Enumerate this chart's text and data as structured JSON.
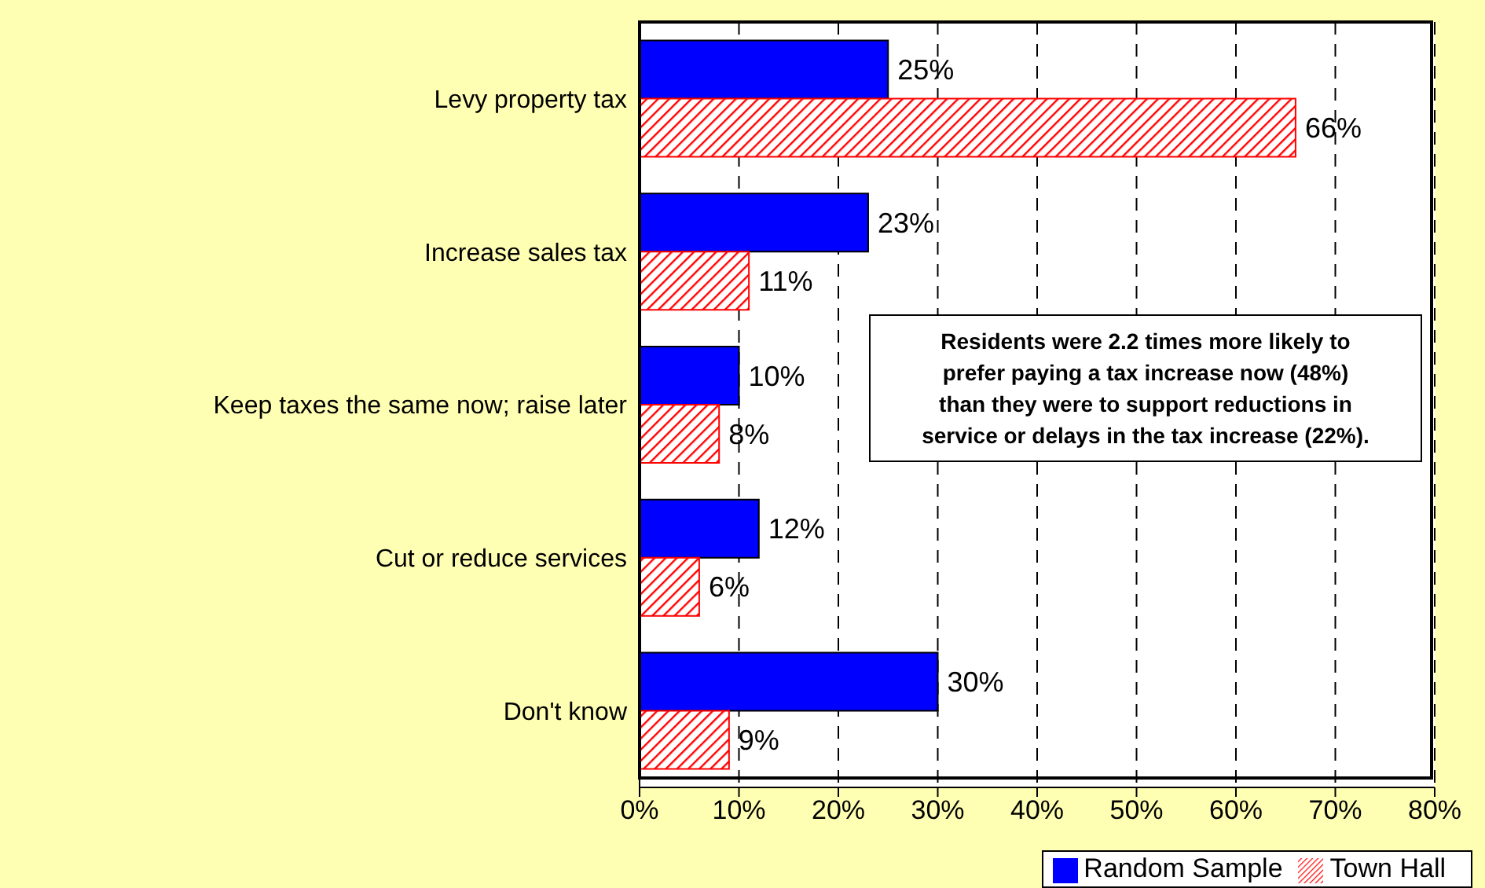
{
  "chart_data": {
    "type": "bar",
    "orientation": "horizontal",
    "categories": [
      "Levy property tax",
      "Increase sales tax",
      "Keep taxes the same now; raise later",
      "Cut or reduce services",
      "Don't know"
    ],
    "series": [
      {
        "name": "Random Sample",
        "color": "#0000ff",
        "values": [
          25,
          23,
          10,
          12,
          30
        ],
        "value_labels": [
          "25%",
          "23%",
          "10%",
          "12%",
          "30%"
        ]
      },
      {
        "name": "Town Hall",
        "color": "#ff0000",
        "values": [
          66,
          11,
          8,
          6,
          9
        ],
        "value_labels": [
          "66%",
          "11%",
          "8%",
          "6%",
          "9%"
        ]
      }
    ],
    "xlim": [
      0,
      80
    ],
    "xticks": [
      {
        "value": 0,
        "label": "0%"
      },
      {
        "value": 10,
        "label": "10%"
      },
      {
        "value": 20,
        "label": "20%"
      },
      {
        "value": 30,
        "label": "30%"
      },
      {
        "value": 40,
        "label": "40%"
      },
      {
        "value": 50,
        "label": "50%"
      },
      {
        "value": 60,
        "label": "60%"
      },
      {
        "value": 70,
        "label": "70%"
      },
      {
        "value": 80,
        "label": "80%"
      }
    ],
    "grid": "x",
    "legend": "bottom right",
    "annotations": [
      "Residents were 2.2 times more likely to prefer paying a tax increase now (48%) than they were to support reductions in service or delays in the tax increase (22%)."
    ]
  }
}
